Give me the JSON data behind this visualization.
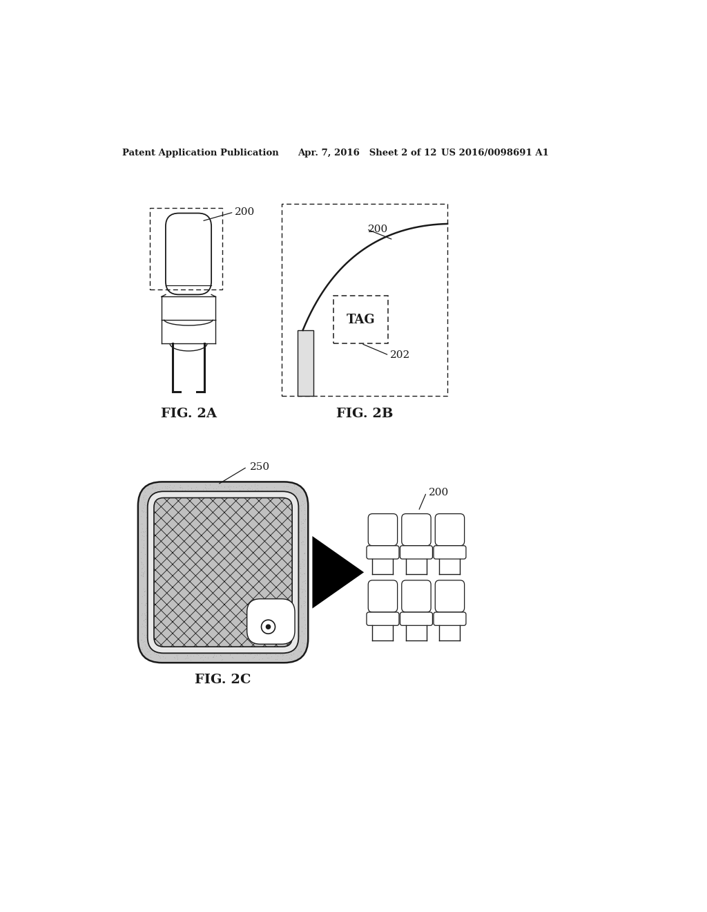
{
  "header_left": "Patent Application Publication",
  "header_mid": "Apr. 7, 2016   Sheet 2 of 12",
  "header_right": "US 2016/0098691 A1",
  "fig2a_label": "FIG. 2A",
  "fig2b_label": "FIG. 2B",
  "fig2c_label": "FIG. 2C",
  "label_200a": "200",
  "label_200b": "200",
  "label_200c": "200",
  "label_202": "202",
  "label_250": "250",
  "tag_text": "TAG",
  "bg_color": "#ffffff",
  "line_color": "#1a1a1a",
  "stipple_color": "#b0b0b0",
  "hatch_color": "#888888",
  "header_fontsize": 9.5,
  "label_fontsize": 11,
  "fig_label_fontsize": 14
}
